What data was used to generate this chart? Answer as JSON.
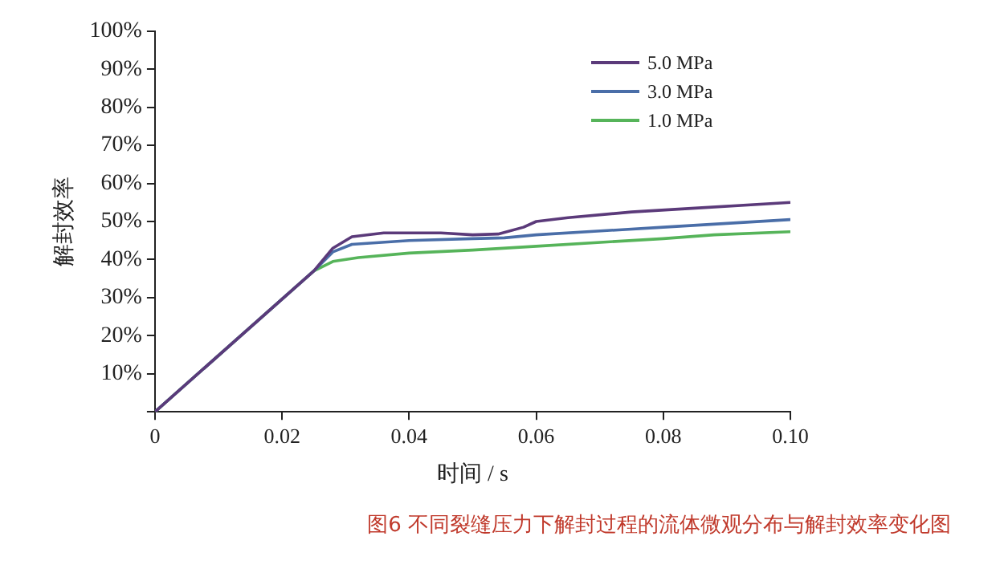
{
  "chart_data": {
    "type": "line",
    "xlabel": "时间 / s",
    "ylabel": "解封效率",
    "annotations": [
      "图6 不同裂缝压力下解封过程的流体微观分布与解封效率变化图"
    ],
    "xlim": [
      0,
      0.1
    ],
    "xticks": [
      0,
      0.02,
      0.04,
      0.06,
      0.08,
      {
        "value": 0.1,
        "label": "0.10"
      }
    ],
    "ylim": [
      0,
      100
    ],
    "yticks": [
      {
        "value": 0,
        "label": null
      },
      {
        "value": 10,
        "label": "10%"
      },
      {
        "value": 20,
        "label": "20%"
      },
      {
        "value": 30,
        "label": "30%"
      },
      {
        "value": 40,
        "label": "40%"
      },
      {
        "value": 50,
        "label": "50%"
      },
      {
        "value": 60,
        "label": "60%"
      },
      {
        "value": 70,
        "label": "70%"
      },
      {
        "value": 80,
        "label": "80%"
      },
      {
        "value": 90,
        "label": "90%"
      },
      {
        "value": 100,
        "label": "100%"
      }
    ],
    "grid": false,
    "legend": "top right",
    "marker": "none",
    "line_style": "solid",
    "series": [
      {
        "name": "5.0 MPa",
        "color": "#5b3a7a",
        "x": [
          0,
          0.025,
          0.028,
          0.031,
          0.036,
          0.045,
          0.05,
          0.054,
          0.058,
          0.06,
          0.065,
          0.075,
          0.085,
          0.1
        ],
        "values": [
          0,
          37,
          43,
          46,
          47,
          47,
          46.5,
          46.7,
          48.5,
          50,
          51,
          52.5,
          53.5,
          55
        ]
      },
      {
        "name": "3.0 MPa",
        "color": "#4a6ea8",
        "x": [
          0,
          0.025,
          0.028,
          0.031,
          0.04,
          0.05,
          0.055,
          0.06,
          0.08,
          0.1
        ],
        "values": [
          0,
          37,
          42,
          44,
          45,
          45.5,
          45.7,
          46.5,
          48.5,
          50.5
        ]
      },
      {
        "name": "1.0 MPa",
        "color": "#56b45a",
        "x": [
          0,
          0.025,
          0.028,
          0.032,
          0.04,
          0.05,
          0.06,
          0.08,
          0.088,
          0.1
        ],
        "values": [
          0,
          37,
          39.5,
          40.5,
          41.7,
          42.5,
          43.5,
          45.5,
          46.5,
          47.3
        ]
      }
    ]
  }
}
